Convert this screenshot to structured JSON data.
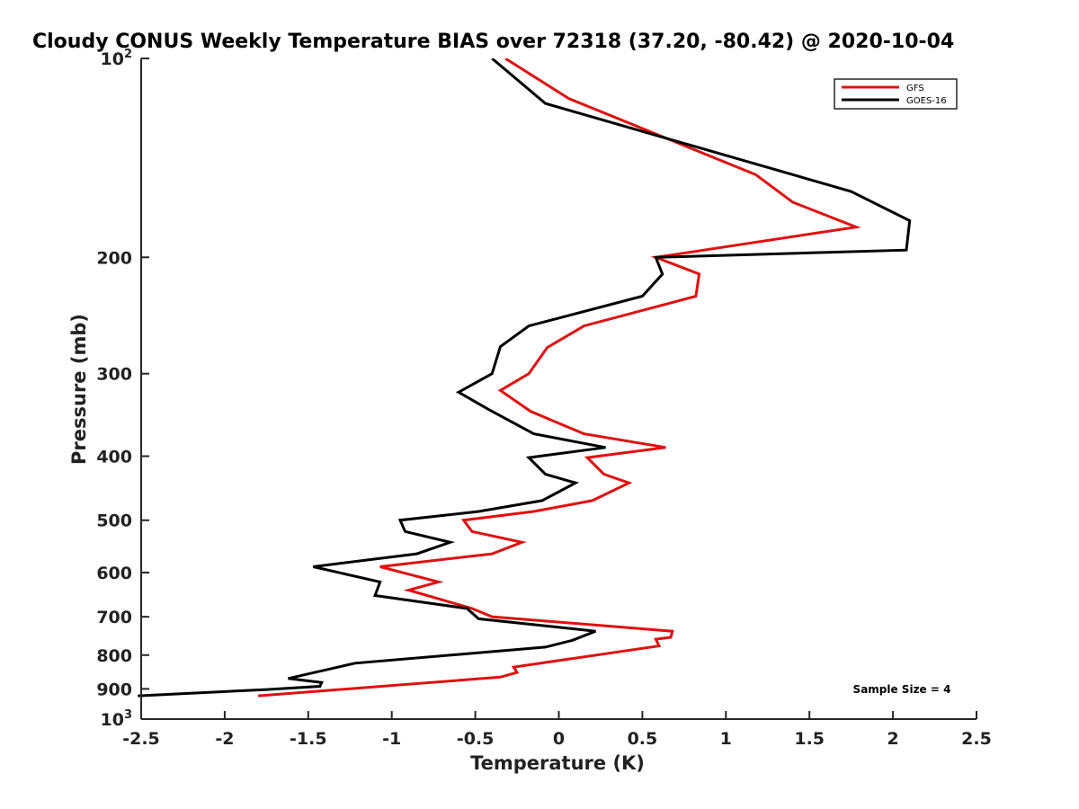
{
  "chart_data": {
    "type": "line",
    "title": "Cloudy CONUS Weekly Temperature BIAS over 72318 (37.20, -80.42) @ 2020-10-04",
    "xlabel": "Temperature (K)",
    "ylabel": "Pressure (mb)",
    "xlim": [
      -2.5,
      2.5
    ],
    "ylim": [
      100,
      1000
    ],
    "y_scale": "log",
    "y_direction": "reversed",
    "x_ticks": [
      "-2.5",
      "-2",
      "-1.5",
      "-1",
      "-0.5",
      "0",
      "0.5",
      "1",
      "1.5",
      "2",
      "2.5"
    ],
    "y_ticks": [
      {
        "value": 100,
        "base": "10",
        "exp": "2"
      },
      {
        "value": 200,
        "base": "200",
        "exp": ""
      },
      {
        "value": 300,
        "base": "300",
        "exp": ""
      },
      {
        "value": 400,
        "base": "400",
        "exp": ""
      },
      {
        "value": 500,
        "base": "500",
        "exp": ""
      },
      {
        "value": 600,
        "base": "600",
        "exp": ""
      },
      {
        "value": 700,
        "base": "700",
        "exp": ""
      },
      {
        "value": 800,
        "base": "800",
        "exp": ""
      },
      {
        "value": 900,
        "base": "900",
        "exp": ""
      },
      {
        "value": 1000,
        "base": "10",
        "exp": "3"
      }
    ],
    "grid": false,
    "legend_position": "top-right",
    "annotation": "Sample Size = 4",
    "series": [
      {
        "name": "GFS",
        "color": "#e01010",
        "points": [
          [
            -0.32,
            100
          ],
          [
            0.06,
            115
          ],
          [
            1.18,
            150
          ],
          [
            1.4,
            165
          ],
          [
            1.78,
            180
          ],
          [
            0.58,
            200
          ],
          [
            0.84,
            212
          ],
          [
            0.82,
            229
          ],
          [
            0.15,
            254
          ],
          [
            -0.07,
            274
          ],
          [
            -0.18,
            300
          ],
          [
            -0.35,
            318
          ],
          [
            -0.17,
            342
          ],
          [
            0.15,
            370
          ],
          [
            0.64,
            388
          ],
          [
            0.17,
            402
          ],
          [
            0.27,
            426
          ],
          [
            0.42,
            439
          ],
          [
            0.2,
            467
          ],
          [
            -0.15,
            485
          ],
          [
            -0.57,
            500
          ],
          [
            -0.52,
            520
          ],
          [
            -0.22,
            540
          ],
          [
            -0.4,
            562
          ],
          [
            -1.07,
            588
          ],
          [
            -0.72,
            620
          ],
          [
            -0.9,
            638
          ],
          [
            -0.52,
            680
          ],
          [
            -0.4,
            700
          ],
          [
            0.68,
            736
          ],
          [
            0.67,
            752
          ],
          [
            0.58,
            757
          ],
          [
            0.6,
            775
          ],
          [
            -0.27,
            834
          ],
          [
            -0.25,
            850
          ],
          [
            -0.35,
            864
          ],
          [
            -1.8,
            922
          ]
        ]
      },
      {
        "name": "GOES-16",
        "color": "#000000",
        "points": [
          [
            -0.4,
            100
          ],
          [
            -0.08,
            117
          ],
          [
            1.75,
            159
          ],
          [
            2.1,
            176
          ],
          [
            2.08,
            195
          ],
          [
            0.58,
            200
          ],
          [
            0.62,
            212
          ],
          [
            0.5,
            229
          ],
          [
            -0.18,
            254
          ],
          [
            -0.35,
            273
          ],
          [
            -0.4,
            300
          ],
          [
            -0.6,
            320
          ],
          [
            -0.42,
            340
          ],
          [
            -0.15,
            370
          ],
          [
            0.28,
            388
          ],
          [
            -0.18,
            402
          ],
          [
            -0.08,
            426
          ],
          [
            0.1,
            439
          ],
          [
            -0.1,
            467
          ],
          [
            -0.48,
            485
          ],
          [
            -0.95,
            500
          ],
          [
            -0.92,
            520
          ],
          [
            -0.65,
            540
          ],
          [
            -0.85,
            562
          ],
          [
            -1.47,
            588
          ],
          [
            -1.07,
            620
          ],
          [
            -1.1,
            650
          ],
          [
            -0.55,
            680
          ],
          [
            -0.48,
            705
          ],
          [
            0.22,
            736
          ],
          [
            0.08,
            760
          ],
          [
            -0.08,
            778
          ],
          [
            -1.22,
            823
          ],
          [
            -1.62,
            868
          ],
          [
            -1.42,
            880
          ],
          [
            -1.43,
            892
          ],
          [
            -1.75,
            902
          ],
          [
            -2.52,
            922
          ]
        ]
      }
    ]
  }
}
